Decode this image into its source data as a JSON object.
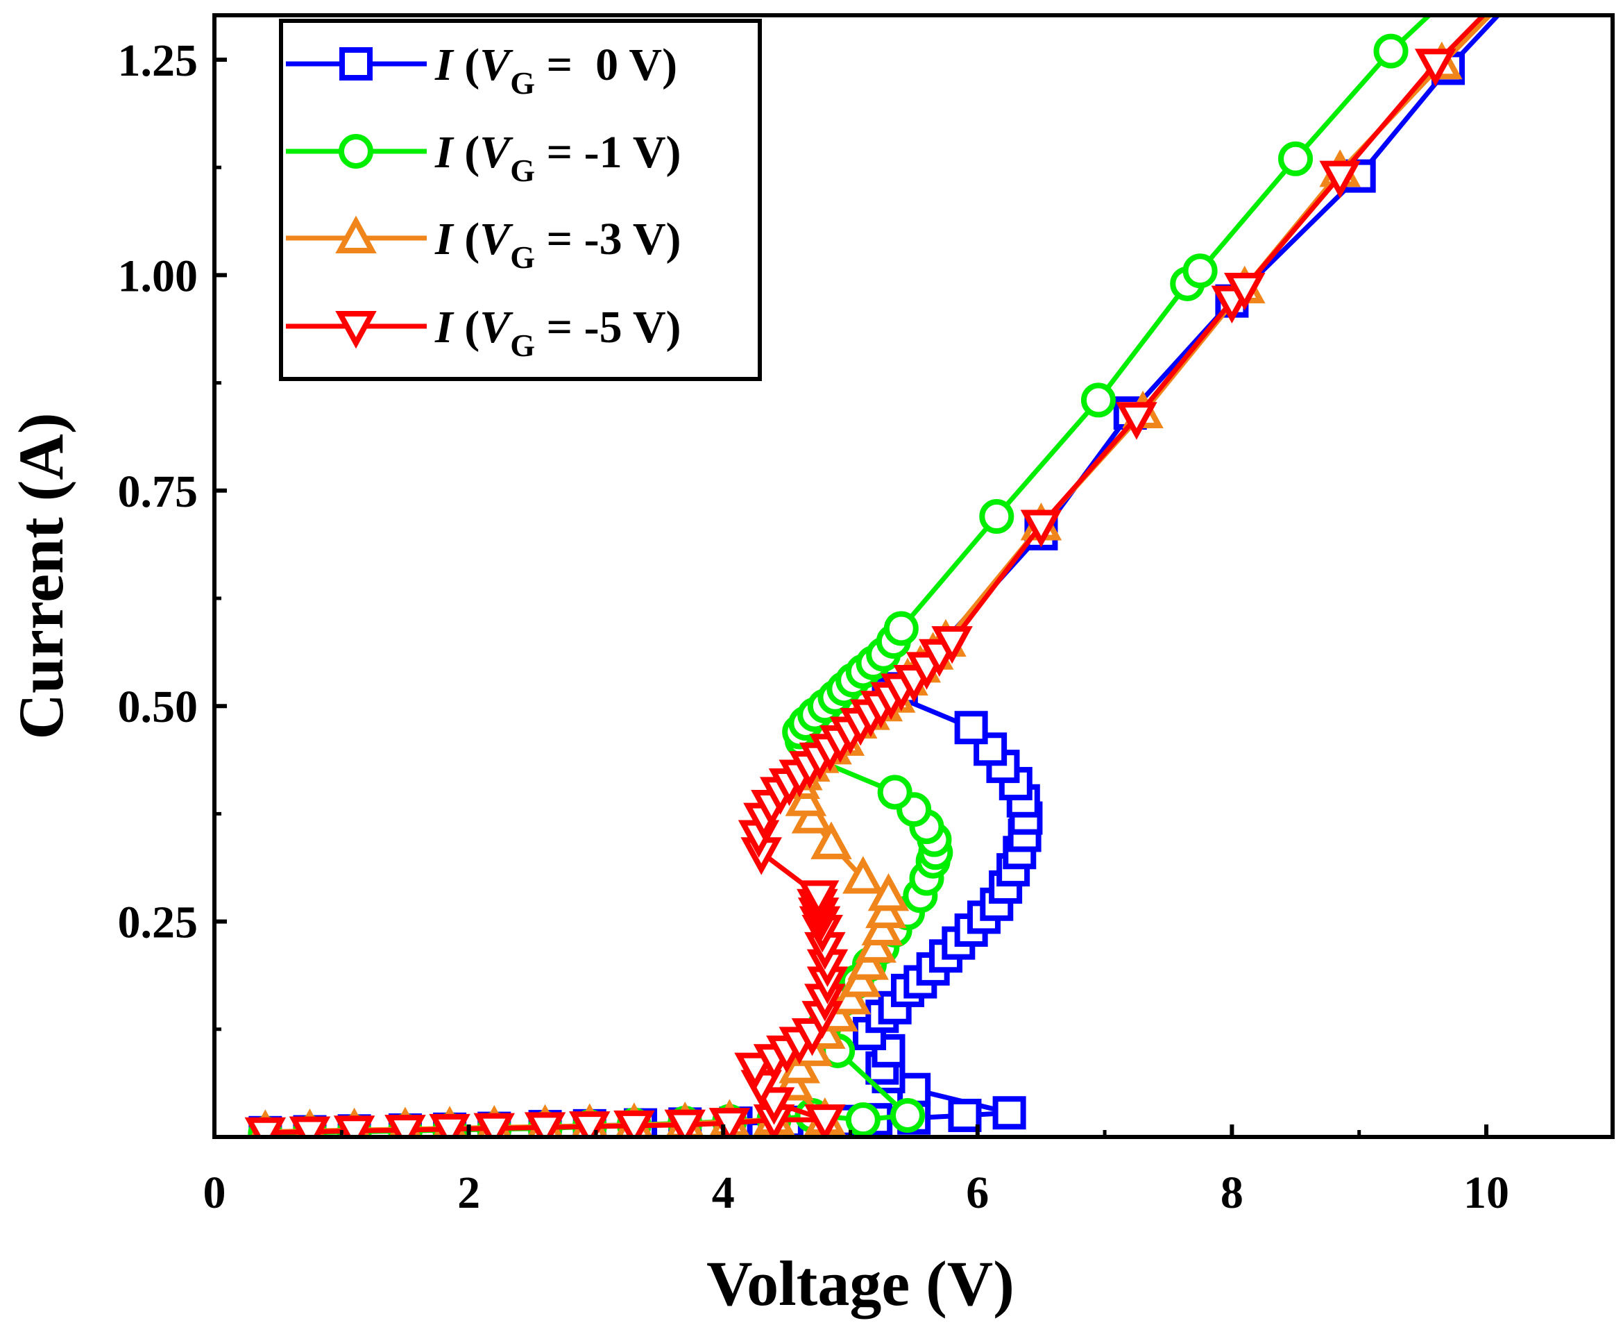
{
  "chart_data": {
    "type": "line",
    "xlabel": "Voltage (V)",
    "ylabel": "Current (A)",
    "xlim": [
      0,
      11
    ],
    "ylim": [
      0,
      1.3
    ],
    "xticks": [
      0,
      2,
      4,
      6,
      8,
      10
    ],
    "xtick_labels": [
      "0",
      "2",
      "4",
      "6",
      "8",
      "10"
    ],
    "yticks": [
      0.25,
      0.5,
      0.75,
      1.0,
      1.25
    ],
    "ytick_labels": [
      "0.25",
      "0.50",
      "0.75",
      "1.00",
      "1.25"
    ],
    "legend_position": "top-left",
    "series": [
      {
        "name": "I (VG = 0 V)",
        "legend": {
          "italic": "I",
          "open": " (",
          "var": "V",
          "sub": "G",
          "rest": " =  0 V)"
        },
        "color": "#0000ff",
        "marker": "square",
        "x": [
          0.4,
          0.75,
          1.1,
          1.5,
          1.85,
          2.2,
          2.6,
          2.95,
          3.35,
          3.7,
          4.1,
          4.5,
          4.9,
          5.2,
          5.5,
          5.9,
          6.25,
          5.5,
          5.3,
          5.25,
          5.3,
          5.15,
          5.25,
          5.35,
          5.45,
          5.55,
          5.65,
          5.75,
          5.85,
          5.95,
          6.05,
          6.15,
          6.22,
          6.28,
          6.33,
          6.37,
          6.38,
          6.36,
          6.3,
          6.2,
          6.1,
          5.95,
          5.3,
          5.4,
          6.5,
          7.2,
          8.0,
          9.0,
          9.7,
          10.4
        ],
        "y": [
          0.005,
          0.006,
          0.007,
          0.008,
          0.009,
          0.01,
          0.012,
          0.013,
          0.014,
          0.015,
          0.016,
          0.017,
          0.018,
          0.02,
          0.022,
          0.025,
          0.028,
          0.055,
          0.07,
          0.08,
          0.1,
          0.12,
          0.14,
          0.15,
          0.17,
          0.18,
          0.195,
          0.21,
          0.225,
          0.24,
          0.255,
          0.27,
          0.29,
          0.31,
          0.33,
          0.35,
          0.37,
          0.39,
          0.41,
          0.43,
          0.45,
          0.475,
          0.515,
          0.52,
          0.7,
          0.84,
          0.97,
          1.115,
          1.24,
          1.35
        ]
      },
      {
        "name": "I (VG = -1 V)",
        "legend": {
          "italic": "I",
          "open": " (",
          "var": "V",
          "sub": "G",
          "rest": " = -1 V)"
        },
        "color": "#00ee00",
        "marker": "circle",
        "x": [
          0.4,
          0.75,
          1.1,
          1.5,
          1.85,
          2.2,
          2.6,
          2.95,
          3.3,
          3.7,
          4.05,
          4.4,
          4.7,
          5.1,
          5.45,
          4.9,
          4.8,
          4.95,
          5.05,
          5.15,
          5.25,
          5.35,
          5.45,
          5.55,
          5.6,
          5.65,
          5.67,
          5.66,
          5.6,
          5.5,
          5.35,
          4.7,
          4.62,
          4.6,
          4.65,
          4.72,
          4.8,
          4.88,
          4.95,
          5.02,
          5.1,
          5.18,
          5.26,
          5.34,
          5.4,
          6.15,
          6.95,
          7.65,
          7.75,
          8.5,
          9.25,
          9.9
        ],
        "y": [
          0.004,
          0.005,
          0.006,
          0.007,
          0.008,
          0.009,
          0.01,
          0.012,
          0.014,
          0.016,
          0.018,
          0.02,
          0.025,
          0.02,
          0.025,
          0.1,
          0.13,
          0.16,
          0.18,
          0.2,
          0.22,
          0.24,
          0.26,
          0.28,
          0.3,
          0.32,
          0.33,
          0.345,
          0.36,
          0.38,
          0.4,
          0.44,
          0.46,
          0.47,
          0.48,
          0.49,
          0.5,
          0.51,
          0.52,
          0.53,
          0.54,
          0.55,
          0.56,
          0.575,
          0.59,
          0.72,
          0.855,
          0.99,
          1.005,
          1.135,
          1.26,
          1.35
        ]
      },
      {
        "name": "I (VG = -3 V)",
        "legend": {
          "italic": "I",
          "open": " (",
          "var": "V",
          "sub": "G",
          "rest": " = -3 V)"
        },
        "color": "#f0851c",
        "marker": "triangle-up",
        "x": [
          0.4,
          0.75,
          1.1,
          1.5,
          1.85,
          2.2,
          2.6,
          2.95,
          3.3,
          3.7,
          4.05,
          4.4,
          4.8,
          4.55,
          4.6,
          4.7,
          4.8,
          4.9,
          5.0,
          5.08,
          5.14,
          5.2,
          5.25,
          5.28,
          5.3,
          5.1,
          4.85,
          4.7,
          4.65,
          4.6,
          4.62,
          4.68,
          4.75,
          4.85,
          4.95,
          5.05,
          5.15,
          5.25,
          5.35,
          5.45,
          5.55,
          5.65,
          5.75,
          6.5,
          7.3,
          8.1,
          8.85,
          9.65,
          10.35
        ],
        "y": [
          0.006,
          0.007,
          0.008,
          0.009,
          0.01,
          0.011,
          0.012,
          0.013,
          0.014,
          0.015,
          0.018,
          0.02,
          0.02,
          0.06,
          0.08,
          0.1,
          0.12,
          0.14,
          0.16,
          0.18,
          0.2,
          0.22,
          0.24,
          0.26,
          0.28,
          0.3,
          0.34,
          0.37,
          0.39,
          0.41,
          0.42,
          0.43,
          0.44,
          0.45,
          0.46,
          0.48,
          0.49,
          0.5,
          0.51,
          0.53,
          0.545,
          0.56,
          0.575,
          0.71,
          0.84,
          0.985,
          1.12,
          1.245,
          1.35
        ]
      },
      {
        "name": "I (VG = -5 V)",
        "legend": {
          "italic": "I",
          "open": " (",
          "var": "V",
          "sub": "G",
          "rest": " = -5 V)"
        },
        "color": "#ff0000",
        "marker": "triangle-down",
        "x": [
          0.4,
          0.75,
          1.1,
          1.5,
          1.85,
          2.2,
          2.6,
          2.95,
          3.3,
          3.7,
          4.05,
          4.4,
          4.8,
          4.4,
          4.3,
          4.25,
          4.4,
          4.5,
          4.6,
          4.7,
          4.78,
          4.8,
          4.82,
          4.82,
          4.8,
          4.78,
          4.76,
          4.75,
          4.74,
          4.75,
          4.3,
          4.28,
          4.32,
          4.38,
          4.45,
          4.52,
          4.6,
          4.68,
          4.76,
          4.84,
          4.92,
          5.0,
          5.08,
          5.16,
          5.24,
          5.32,
          5.4,
          5.5,
          5.6,
          5.7,
          5.8,
          6.5,
          7.25,
          8.0,
          8.1,
          8.85,
          9.6,
          10.3
        ],
        "y": [
          0.005,
          0.006,
          0.007,
          0.008,
          0.009,
          0.01,
          0.011,
          0.012,
          0.013,
          0.014,
          0.016,
          0.02,
          0.02,
          0.04,
          0.06,
          0.08,
          0.09,
          0.1,
          0.11,
          0.12,
          0.14,
          0.16,
          0.18,
          0.2,
          0.22,
          0.24,
          0.25,
          0.26,
          0.27,
          0.28,
          0.33,
          0.35,
          0.37,
          0.385,
          0.4,
          0.41,
          0.42,
          0.43,
          0.44,
          0.45,
          0.46,
          0.47,
          0.48,
          0.49,
          0.5,
          0.51,
          0.52,
          0.53,
          0.545,
          0.56,
          0.575,
          0.71,
          0.835,
          0.97,
          0.985,
          1.115,
          1.245,
          1.35
        ]
      }
    ]
  }
}
